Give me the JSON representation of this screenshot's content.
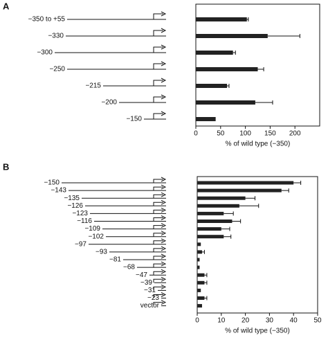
{
  "chart_data": [
    {
      "type": "bar",
      "label": "A",
      "orientation": "horizontal",
      "color": "#222222",
      "categories": [
        "−350 to +55",
        "−330",
        "−300",
        "−250",
        "−215",
        "−200",
        "−150"
      ],
      "values": [
        103,
        145,
        75,
        125,
        63,
        120,
        40
      ],
      "errors": [
        3,
        65,
        5,
        12,
        4,
        35,
        null
      ],
      "xlim": [
        0,
        250
      ],
      "xticks": [
        0,
        50,
        100,
        150,
        200
      ],
      "x_label": "% of wild type (−350)"
    },
    {
      "type": "bar",
      "label": "B",
      "orientation": "horizontal",
      "color": "#222222",
      "categories": [
        "−150",
        "−143",
        "−135",
        "−126",
        "−123",
        "−116",
        "−109",
        "−102",
        "−97",
        "−93",
        "−81",
        "−68",
        "−47",
        "−39",
        "−31",
        "−23",
        "vector"
      ],
      "values": [
        40,
        35,
        20,
        17.5,
        11,
        14.5,
        10,
        11,
        1.5,
        2,
        1,
        1,
        3,
        3,
        1.5,
        3,
        2
      ],
      "errors": [
        3,
        3,
        4,
        8,
        4,
        3.5,
        3.5,
        3,
        null,
        1,
        null,
        null,
        1,
        1,
        null,
        1,
        null
      ],
      "xlim": [
        0,
        50
      ],
      "xticks": [
        0,
        10,
        20,
        30,
        40,
        50
      ],
      "x_label": "% of wild type (−350)"
    }
  ]
}
